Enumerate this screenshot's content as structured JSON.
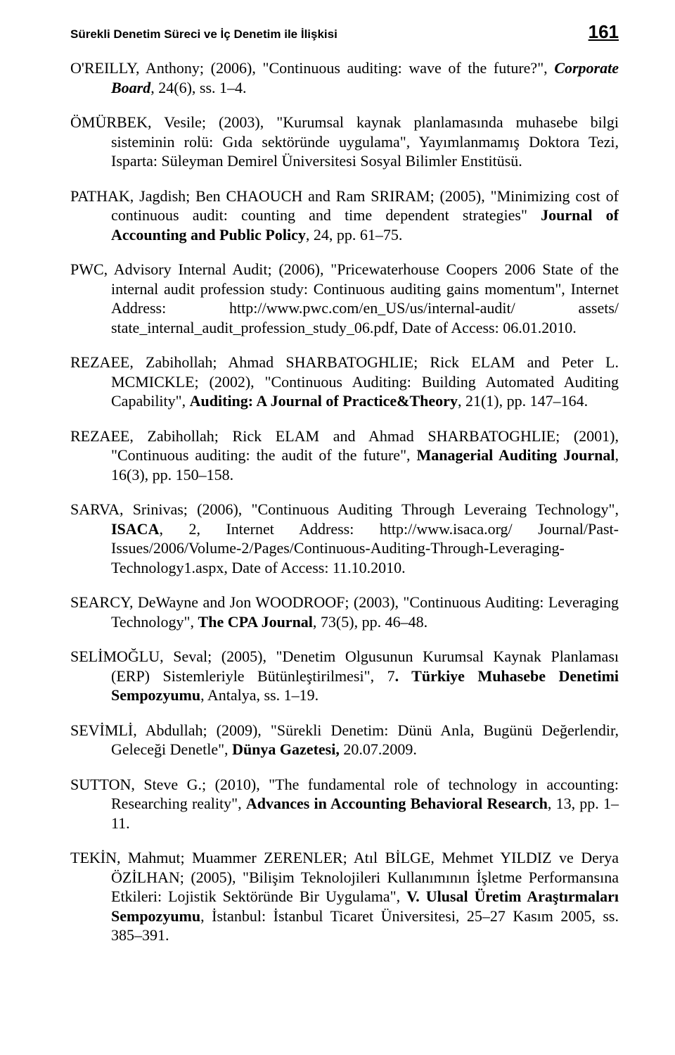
{
  "header": {
    "title": "Sürekli Denetim Süreci ve İç Denetim ile İlişkisi",
    "page_number": "161"
  },
  "refs": {
    "r1a": "O'REILLY, Anthony; (2006), \"Continuous auditing: wave of the future?\", ",
    "r1b": "Corporate Board",
    "r1c": ", 24(6), ss. 1–4.",
    "r2": "ÖMÜRBEK, Vesile; (2003), \"Kurumsal kaynak planlamasında muhasebe bilgi sisteminin rolü: Gıda sektöründe uygulama\", Yayımlanmamış Doktora Tezi, Isparta: Süleyman Demirel Üniversitesi Sosyal Bilimler Enstitüsü.",
    "r3a": "PATHAK, Jagdish; Ben CHAOUCH and Ram SRIRAM; (2005), \"Minimizing cost of continuous audit: counting and time dependent strategies\" ",
    "r3b": "Journal of Accounting and Public Policy",
    "r3c": ", 24, pp. 61–75.",
    "r4": "PWC, Advisory Internal Audit; (2006), \"Pricewaterhouse Coopers 2006 State of the internal audit profession study: Continuous auditing gains momentum\", Internet Address: http://www.pwc.com/en_US/us/internal-audit/ assets/ state_internal_audit_profession_study_06.pdf, Date of Access: 06.01.2010.",
    "r5a": "REZAEE, Zabihollah; Ahmad SHARBATOGHLIE; Rick ELAM and Peter L. MCMICKLE; (2002), \"Continuous Auditing: Building Automated Auditing Capability\", ",
    "r5b": "Auditing: A Journal of Practice&Theory",
    "r5c": ", 21(1), pp. 147–164.",
    "r6a": "REZAEE, Zabihollah;  Rick ELAM and Ahmad SHARBATOGHLIE; (2001), \"Continuous auditing: the audit of the future\", ",
    "r6b": "Managerial Auditing Journal",
    "r6c": ", 16(3), pp. 150–158.",
    "r7a": "SARVA, Srinivas; (2006), \"Continuous Auditing Through Leveraing Technology\", ",
    "r7b": "ISACA",
    "r7c": ", 2, Internet Address: http://www.isaca.org/ Journal/Past-Issues/2006/Volume-2/Pages/Continuous-Auditing-Through-Leveraging-Technology1.aspx, Date of Access: 11.10.2010.",
    "r8a": "SEARCY, DeWayne and Jon WOODROOF; (2003), \"Continuous Auditing: Leveraging Technology\", ",
    "r8b": "The CPA Journal",
    "r8c": ", 73(5), pp. 46–48.",
    "r9a": "SELİMOĞLU, Seval; (2005), \"Denetim Olgusunun Kurumsal Kaynak Planlaması (ERP) Sistemleriyle Bütünleştirilmesi\", 7",
    "r9b": ". Türkiye Muhasebe Denetimi Sempozyumu",
    "r9c": ", Antalya, ss. 1–19.",
    "r10a": "SEVİMLİ, Abdullah; (2009), \"Sürekli Denetim: Dünü Anla, Bugünü Değerlendir, Geleceği Denetle\", ",
    "r10b": "Dünya Gazetesi,",
    "r10c": " 20.07.2009.",
    "r11a": "SUTTON, Steve G.; (2010), \"The fundamental role of technology in accounting: Researching reality\", ",
    "r11b": "Advances in Accounting Behavioral Research",
    "r11c": ", 13, pp. 1–11.",
    "r12a": "TEKİN, Mahmut; Muammer ZERENLER; Atıl BİLGE, Mehmet YILDIZ ve Derya ÖZİLHAN; (2005), \"Bilişim Teknolojileri Kullanımının İşletme Performansına Etkileri: Lojistik Sektöründe Bir Uygulama\", ",
    "r12b": "V. Ulusal Üretim Araştırmaları Sempozyumu",
    "r12c": ", İstanbul: İstanbul Ticaret Üniversitesi, 25–27 Kasım 2005, ss. 385–391."
  }
}
